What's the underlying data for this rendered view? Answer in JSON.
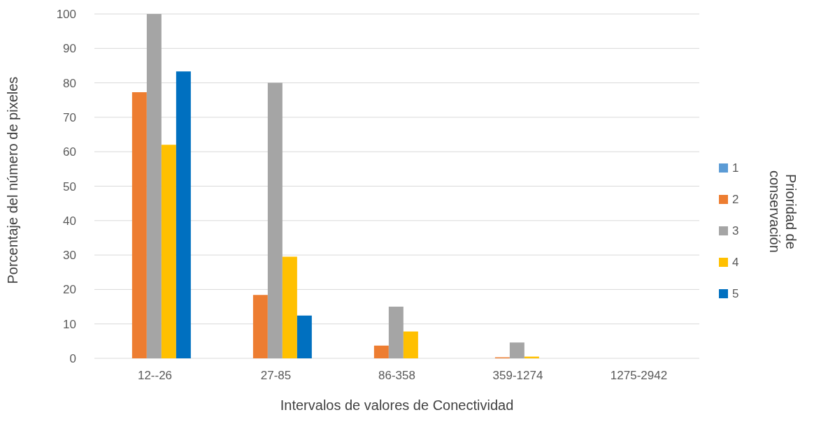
{
  "chart_data": {
    "type": "bar",
    "xlabel": "Intervalos de valores de Conectividad",
    "ylabel": "Porcentaje del número de pixeles",
    "legend_title": "Prioridad de conservación",
    "categories": [
      "12--26",
      "27-85",
      "86-358",
      "359-1274",
      "1275-2942"
    ],
    "series": [
      {
        "name": "1",
        "color": "#5b9bd5",
        "values": [
          0,
          0,
          0,
          0,
          0
        ]
      },
      {
        "name": "2",
        "color": "#ed7d31",
        "values": [
          77.3,
          18.4,
          3.7,
          0.3,
          0
        ]
      },
      {
        "name": "3",
        "color": "#a5a5a5",
        "values": [
          100,
          80,
          15,
          4.6,
          0
        ]
      },
      {
        "name": "4",
        "color": "#ffc000",
        "values": [
          62,
          29.5,
          7.8,
          0.5,
          0
        ]
      },
      {
        "name": "5",
        "color": "#0070c0",
        "values": [
          83.3,
          12.4,
          0,
          0,
          0
        ]
      }
    ],
    "ylim": [
      0,
      100
    ],
    "yticks": [
      0,
      10,
      20,
      30,
      40,
      50,
      60,
      70,
      80,
      90,
      100
    ],
    "grid": "y",
    "legend": "right"
  }
}
